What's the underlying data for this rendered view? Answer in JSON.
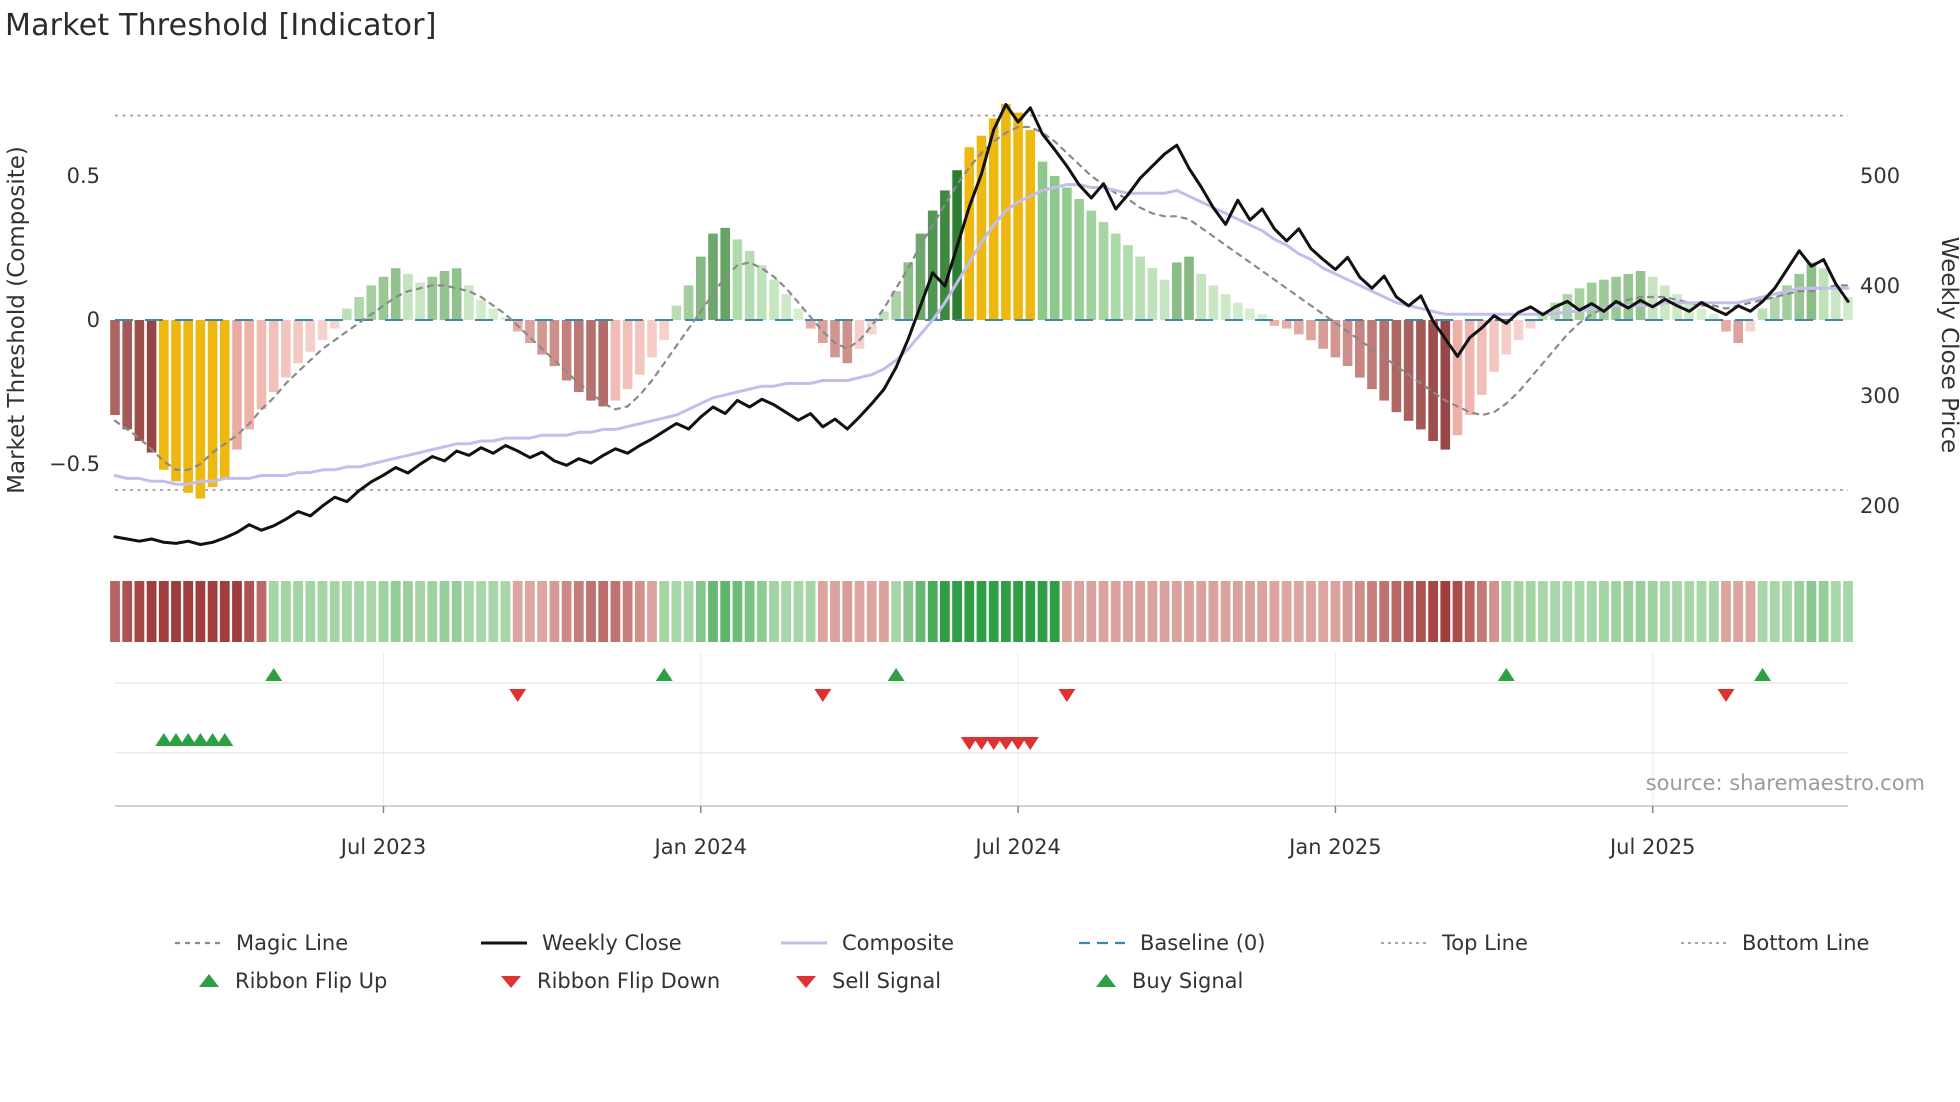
{
  "title": "Market Threshold [Indicator]",
  "source": "source: sharemaestro.com",
  "legend": {
    "magic_line": "Magic Line",
    "weekly_close": "Weekly Close",
    "composite": "Composite",
    "baseline": "Baseline (0)",
    "top_line": "Top Line",
    "bottom_line": "Bottom Line",
    "ribbon_flip_up": "Ribbon Flip Up",
    "ribbon_flip_down": "Ribbon Flip Down",
    "sell_signal": "Sell Signal",
    "buy_signal": "Buy Signal"
  },
  "colors": {
    "bar_gold": "#efb810",
    "bar_green_rise_pale": "#c9e7c0",
    "bar_green_rise_deep": "#2e7d32",
    "bar_green_fade_pale": "#ddf0d6",
    "bar_green_fade_deep": "#8cc98a",
    "bar_red_fall_pale": "#eab6ae",
    "bar_red_fall_deep": "#8e3b3b",
    "bar_red_recover_pale": "#f7d9d4",
    "bar_red_recover_deep": "#eba69c",
    "ribbon_green_pale": "#d6eccf",
    "ribbon_green_deep": "#2f9e44",
    "ribbon_red_pale": "#f3cdc6",
    "ribbon_red_deep": "#a03d3d",
    "weekly_close": "#111111",
    "composite": "#c3bdec",
    "magic_line": "#8a8a8a",
    "baseline": "#3d87ad",
    "ref_line": "#999999",
    "signal_green": "#2da044",
    "signal_red": "#e03131",
    "grid": "#ececec",
    "axis_text": "#333333",
    "source_text": "#9b9b9b"
  },
  "chart_data": {
    "type": "mixed",
    "title": "Market Threshold [Indicator]",
    "x_axis": {
      "unit": "week",
      "n_points": 143,
      "tick_labels": [
        "Jul 2023",
        "Jan 2024",
        "Jul 2024",
        "Jan 2025",
        "Jul 2025"
      ],
      "tick_weeks": [
        22,
        48,
        74,
        100,
        126
      ]
    },
    "left_axis": {
      "label": "Market Threshold (Composite)",
      "ticks": [
        "0.5",
        "0",
        "−0.5"
      ],
      "tick_values": [
        0.5,
        0,
        -0.5
      ]
    },
    "right_axis": {
      "label": "Weekly Close Price",
      "ticks": [
        "500",
        "400",
        "300",
        "200"
      ],
      "tick_values": [
        500,
        400,
        300,
        200
      ]
    },
    "reference_lines": {
      "baseline": 0,
      "top_line": 0.71,
      "bottom_line": -0.59
    },
    "series": [
      {
        "key": "threshold",
        "name": "Market Threshold histogram",
        "type": "bar",
        "axis": "left",
        "values": [
          -0.33,
          -0.38,
          -0.42,
          -0.46,
          -0.52,
          -0.56,
          -0.6,
          -0.62,
          -0.58,
          -0.55,
          -0.45,
          -0.38,
          -0.31,
          -0.25,
          -0.2,
          -0.15,
          -0.11,
          -0.07,
          -0.03,
          0.04,
          0.08,
          0.12,
          0.15,
          0.18,
          0.16,
          0.13,
          0.15,
          0.17,
          0.18,
          0.12,
          0.07,
          0.04,
          0.01,
          -0.04,
          -0.08,
          -0.12,
          -0.16,
          -0.21,
          -0.25,
          -0.28,
          -0.3,
          -0.28,
          -0.24,
          -0.19,
          -0.13,
          -0.07,
          0.05,
          0.12,
          0.22,
          0.3,
          0.32,
          0.28,
          0.24,
          0.19,
          0.14,
          0.09,
          0.04,
          -0.03,
          -0.08,
          -0.13,
          -0.15,
          -0.1,
          -0.05,
          0.03,
          0.1,
          0.2,
          0.3,
          0.38,
          0.45,
          0.52,
          0.6,
          0.64,
          0.7,
          0.75,
          0.72,
          0.66,
          0.55,
          0.5,
          0.46,
          0.42,
          0.38,
          0.34,
          0.3,
          0.26,
          0.22,
          0.18,
          0.14,
          0.2,
          0.22,
          0.16,
          0.12,
          0.09,
          0.06,
          0.04,
          0.02,
          -0.02,
          -0.03,
          -0.05,
          -0.07,
          -0.1,
          -0.13,
          -0.16,
          -0.2,
          -0.24,
          -0.28,
          -0.32,
          -0.35,
          -0.38,
          -0.42,
          -0.45,
          -0.4,
          -0.33,
          -0.26,
          -0.18,
          -0.12,
          -0.07,
          -0.03,
          0.03,
          0.06,
          0.09,
          0.11,
          0.13,
          0.14,
          0.15,
          0.16,
          0.17,
          0.15,
          0.12,
          0.09,
          0.06,
          0.04,
          0.02,
          -0.04,
          -0.08,
          -0.04,
          0.04,
          0.08,
          0.12,
          0.16,
          0.2,
          0.18,
          0.12,
          0.08
        ]
      },
      {
        "key": "weekly_close",
        "name": "Weekly Close",
        "type": "line",
        "axis": "right",
        "values": [
          172,
          170,
          168,
          170,
          167,
          166,
          168,
          165,
          167,
          171,
          176,
          183,
          178,
          182,
          188,
          195,
          191,
          200,
          208,
          204,
          214,
          222,
          228,
          235,
          230,
          238,
          245,
          241,
          250,
          246,
          253,
          248,
          255,
          250,
          244,
          249,
          241,
          237,
          243,
          239,
          246,
          252,
          248,
          255,
          261,
          268,
          275,
          270,
          281,
          290,
          284,
          296,
          290,
          297,
          292,
          285,
          278,
          284,
          272,
          279,
          270,
          281,
          293,
          306,
          326,
          352,
          382,
          412,
          400,
          436,
          472,
          502,
          542,
          565,
          549,
          562,
          538,
          524,
          509,
          492,
          480,
          493,
          470,
          483,
          498,
          509,
          520,
          528,
          507,
          490,
          471,
          456,
          478,
          460,
          470,
          452,
          441,
          452,
          434,
          424,
          415,
          426,
          408,
          398,
          409,
          390,
          382,
          391,
          368,
          352,
          336,
          353,
          362,
          373,
          366,
          376,
          381,
          374,
          381,
          386,
          378,
          384,
          377,
          386,
          380,
          387,
          381,
          388,
          382,
          377,
          385,
          379,
          374,
          382,
          377,
          386,
          398,
          415,
          432,
          418,
          424,
          402,
          386
        ]
      },
      {
        "key": "composite",
        "name": "Composite",
        "type": "line",
        "axis": "left",
        "values": [
          -0.54,
          -0.55,
          -0.55,
          -0.56,
          -0.56,
          -0.57,
          -0.57,
          -0.56,
          -0.56,
          -0.55,
          -0.55,
          -0.55,
          -0.54,
          -0.54,
          -0.54,
          -0.53,
          -0.53,
          -0.52,
          -0.52,
          -0.51,
          -0.51,
          -0.5,
          -0.49,
          -0.48,
          -0.47,
          -0.46,
          -0.45,
          -0.44,
          -0.43,
          -0.43,
          -0.42,
          -0.42,
          -0.41,
          -0.41,
          -0.41,
          -0.4,
          -0.4,
          -0.4,
          -0.39,
          -0.39,
          -0.38,
          -0.38,
          -0.37,
          -0.36,
          -0.35,
          -0.34,
          -0.33,
          -0.31,
          -0.29,
          -0.27,
          -0.26,
          -0.25,
          -0.24,
          -0.23,
          -0.23,
          -0.22,
          -0.22,
          -0.22,
          -0.21,
          -0.21,
          -0.21,
          -0.2,
          -0.19,
          -0.17,
          -0.14,
          -0.1,
          -0.05,
          0.0,
          0.06,
          0.13,
          0.2,
          0.27,
          0.33,
          0.38,
          0.41,
          0.43,
          0.45,
          0.46,
          0.47,
          0.47,
          0.46,
          0.46,
          0.45,
          0.44,
          0.44,
          0.44,
          0.44,
          0.45,
          0.43,
          0.41,
          0.39,
          0.37,
          0.35,
          0.33,
          0.31,
          0.28,
          0.26,
          0.23,
          0.21,
          0.18,
          0.16,
          0.14,
          0.12,
          0.1,
          0.08,
          0.06,
          0.05,
          0.04,
          0.03,
          0.02,
          0.02,
          0.02,
          0.02,
          0.02,
          0.02,
          0.02,
          0.02,
          0.02,
          0.02,
          0.03,
          0.03,
          0.04,
          0.04,
          0.05,
          0.05,
          0.05,
          0.05,
          0.06,
          0.06,
          0.06,
          0.06,
          0.06,
          0.06,
          0.06,
          0.07,
          0.08,
          0.09,
          0.1,
          0.11,
          0.11,
          0.11,
          0.11,
          0.11
        ]
      },
      {
        "key": "magic_line",
        "name": "Magic Line",
        "type": "line",
        "axis": "left",
        "values": [
          -0.35,
          -0.38,
          -0.41,
          -0.45,
          -0.49,
          -0.52,
          -0.52,
          -0.5,
          -0.46,
          -0.43,
          -0.4,
          -0.36,
          -0.31,
          -0.27,
          -0.22,
          -0.18,
          -0.14,
          -0.1,
          -0.07,
          -0.04,
          -0.01,
          0.02,
          0.05,
          0.08,
          0.1,
          0.11,
          0.12,
          0.12,
          0.11,
          0.1,
          0.08,
          0.05,
          0.02,
          -0.02,
          -0.06,
          -0.1,
          -0.14,
          -0.18,
          -0.22,
          -0.25,
          -0.29,
          -0.31,
          -0.3,
          -0.26,
          -0.21,
          -0.15,
          -0.09,
          -0.03,
          0.03,
          0.09,
          0.15,
          0.19,
          0.2,
          0.18,
          0.15,
          0.11,
          0.06,
          0.01,
          -0.04,
          -0.08,
          -0.1,
          -0.07,
          -0.02,
          0.04,
          0.11,
          0.18,
          0.26,
          0.33,
          0.4,
          0.47,
          0.53,
          0.58,
          0.62,
          0.65,
          0.67,
          0.67,
          0.65,
          0.62,
          0.58,
          0.54,
          0.5,
          0.47,
          0.44,
          0.42,
          0.39,
          0.37,
          0.36,
          0.36,
          0.35,
          0.32,
          0.29,
          0.26,
          0.23,
          0.2,
          0.17,
          0.14,
          0.11,
          0.08,
          0.05,
          0.02,
          -0.01,
          -0.04,
          -0.07,
          -0.1,
          -0.13,
          -0.16,
          -0.19,
          -0.22,
          -0.25,
          -0.28,
          -0.3,
          -0.32,
          -0.33,
          -0.32,
          -0.29,
          -0.25,
          -0.2,
          -0.15,
          -0.1,
          -0.05,
          -0.01,
          0.02,
          0.04,
          0.06,
          0.07,
          0.08,
          0.08,
          0.08,
          0.07,
          0.06,
          0.05,
          0.05,
          0.04,
          0.05,
          0.06,
          0.07,
          0.08,
          0.09,
          0.1,
          0.1,
          0.11,
          0.12,
          0.12
        ]
      }
    ],
    "ribbon_segments": [
      {
        "from": 0,
        "to": 12,
        "dir": "down"
      },
      {
        "from": 13,
        "to": 32,
        "dir": "up"
      },
      {
        "from": 33,
        "to": 44,
        "dir": "down"
      },
      {
        "from": 45,
        "to": 57,
        "dir": "up"
      },
      {
        "from": 58,
        "to": 63,
        "dir": "down"
      },
      {
        "from": 64,
        "to": 77,
        "dir": "up"
      },
      {
        "from": 78,
        "to": 113,
        "dir": "down"
      },
      {
        "from": 114,
        "to": 131,
        "dir": "up"
      },
      {
        "from": 132,
        "to": 134,
        "dir": "down"
      },
      {
        "from": 135,
        "to": 142,
        "dir": "up"
      }
    ],
    "signals": {
      "ribbon_flip_up_weeks": [
        13,
        45,
        64,
        114,
        135
      ],
      "ribbon_flip_down_weeks": [
        33,
        58,
        78,
        132
      ],
      "buy_signal_weeks": [
        4,
        5,
        6,
        7,
        8,
        9
      ],
      "sell_signal_weeks": [
        70,
        71,
        72,
        73,
        74,
        75
      ]
    }
  }
}
